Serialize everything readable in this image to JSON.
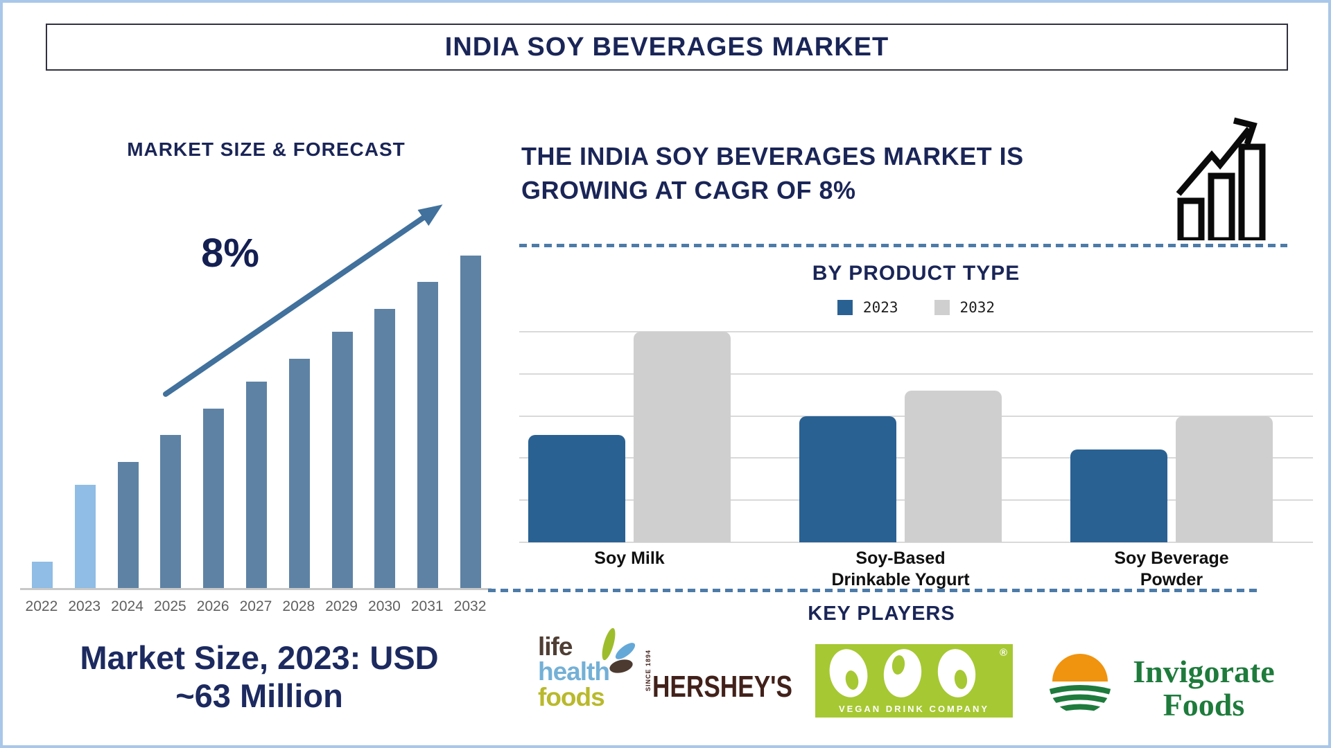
{
  "page": {
    "title": "INDIA SOY BEVERAGES MARKET"
  },
  "left": {
    "caption_line1": "Market Size, 2023: USD",
    "caption_line2": "~63 Million"
  },
  "right": {
    "heading_line1": "THE INDIA SOY BEVERAGES MARKET IS",
    "heading_line2": "GROWING AT CAGR OF 8%",
    "growth_icon": "bar-chart-rising-arrow-icon",
    "key_players": {
      "heading": "KEY PLAYERS",
      "logos": {
        "life_health_foods": {
          "name": "Life Health Foods",
          "words": [
            "life",
            "health",
            "foods"
          ]
        },
        "hersheys": {
          "name": "Hershey's",
          "text": "HERSHEY'S",
          "tagline": "SINCE 1894"
        },
        "vdc": {
          "name": "Vegan Drink Company",
          "letters": "VDC",
          "tagline": "VEGAN DRINK COMPANY",
          "registered": "®"
        },
        "invigorate": {
          "name": "Invigorate Foods",
          "line1": "Invigorate",
          "line2": "Foods"
        }
      }
    }
  },
  "colors": {
    "navy_text": "#1a2557",
    "forecast_bar": "#5e82a4",
    "forecast_bar_highlight": "#8fbde5",
    "trend_arrow": "#41719c",
    "dashed_divider": "#4d7ba8",
    "page_border": "#a9c7e8",
    "gridline": "#d9d9d9",
    "axis_line": "#c8c8c8",
    "year_label": "#5f5f5f",
    "hershey_maroon": "#42211b",
    "vdc_lime": "#a6c832",
    "invigorate_green": "#1e7b3c",
    "invigorate_orange": "#f0930f"
  },
  "chart_data": [
    {
      "id": "market-size-forecast",
      "type": "bar",
      "title": "MARKET SIZE & FORECAST",
      "trend_label": "8%",
      "x": [
        "2022",
        "2023",
        "2024",
        "2025",
        "2026",
        "2027",
        "2028",
        "2029",
        "2030",
        "2031",
        "2032"
      ],
      "relative_height_pct": [
        8,
        31,
        38,
        46,
        54,
        62,
        69,
        77,
        84,
        92,
        100
      ],
      "highlight_indices": [
        0,
        1
      ],
      "bar_color": "#5e82a4",
      "highlight_color": "#8fbde5",
      "y_axis": "none (stylized pictogram, heights relative)",
      "annotations": [
        "8% CAGR upward trend arrow",
        "Market Size, 2023: USD ~63 Million"
      ],
      "grid": false
    },
    {
      "id": "by-product-type",
      "type": "bar",
      "title": "BY PRODUCT TYPE",
      "categories": [
        [
          "Soy Milk"
        ],
        [
          "Soy-Based",
          "Drinkable Yogurt"
        ],
        [
          "Soy Beverage",
          "Powder"
        ]
      ],
      "series": [
        {
          "name": "2023",
          "color": "#2a6193",
          "relative_height_pct": [
            51,
            60,
            44
          ]
        },
        {
          "name": "2032",
          "color": "#cfcfcf",
          "relative_height_pct": [
            100,
            72,
            60
          ]
        }
      ],
      "gridlines": 6,
      "grid": true,
      "legend_position": "top",
      "y_axis": "none (unlabeled, heights relative to tallest bar = 100)"
    }
  ]
}
